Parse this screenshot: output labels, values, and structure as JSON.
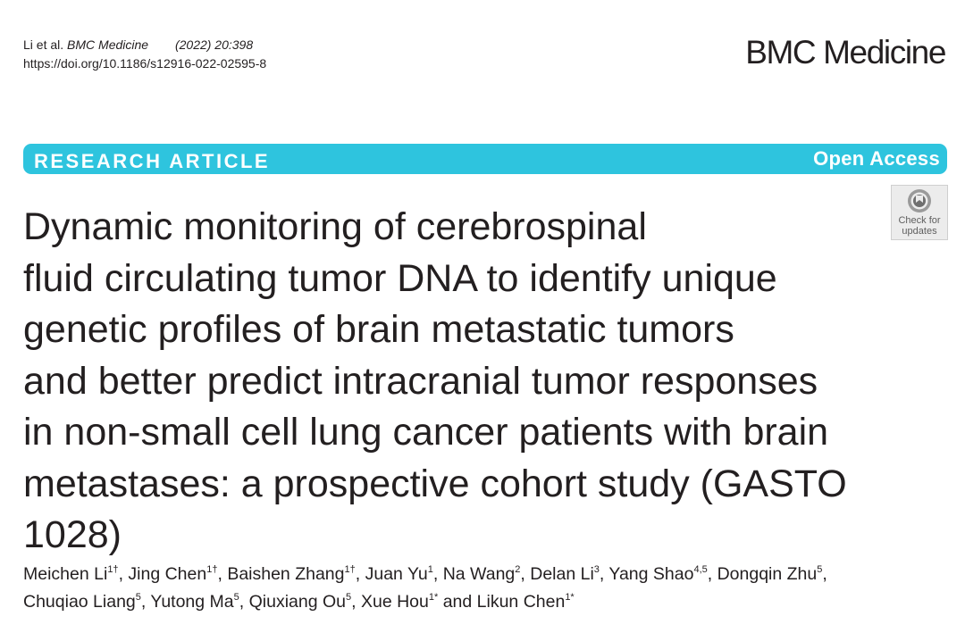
{
  "header": {
    "authors_short": "Li et al.",
    "journal": "BMC Medicine",
    "volume": "(2022) 20:398",
    "doi": "https://doi.org/10.1186/s12916-022-02595-8",
    "brand": "BMC Medicine"
  },
  "banner": {
    "article_type": "RESEARCH ARTICLE",
    "access": "Open Access",
    "color": "#2ec4de"
  },
  "check_updates": {
    "line1": "Check for",
    "line2": "updates",
    "icon": "check-for-updates-icon"
  },
  "title_lines": [
    "Dynamic monitoring of cerebrospinal",
    "fluid circulating tumor DNA to identify unique",
    "genetic profiles of brain metastatic tumors",
    "and better predict intracranial tumor responses",
    "in non-small cell lung cancer patients with brain",
    "metastases: a prospective cohort study (GASTO",
    "1028)"
  ],
  "authors": [
    {
      "name": "Meichen Li",
      "sup": "1†"
    },
    {
      "name": "Jing Chen",
      "sup": "1†"
    },
    {
      "name": "Baishen Zhang",
      "sup": "1†"
    },
    {
      "name": "Juan Yu",
      "sup": "1"
    },
    {
      "name": "Na Wang",
      "sup": "2"
    },
    {
      "name": "Delan Li",
      "sup": "3"
    },
    {
      "name": "Yang Shao",
      "sup": "4,5"
    },
    {
      "name": "Dongqin Zhu",
      "sup": "5"
    },
    {
      "name": "Chuqiao Liang",
      "sup": "5"
    },
    {
      "name": "Yutong Ma",
      "sup": "5"
    },
    {
      "name": "Qiuxiang Ou",
      "sup": "5"
    },
    {
      "name": "Xue Hou",
      "sup": "1*"
    },
    {
      "name": "Likun Chen",
      "sup": "1*"
    }
  ],
  "authors_conjunction": "and"
}
